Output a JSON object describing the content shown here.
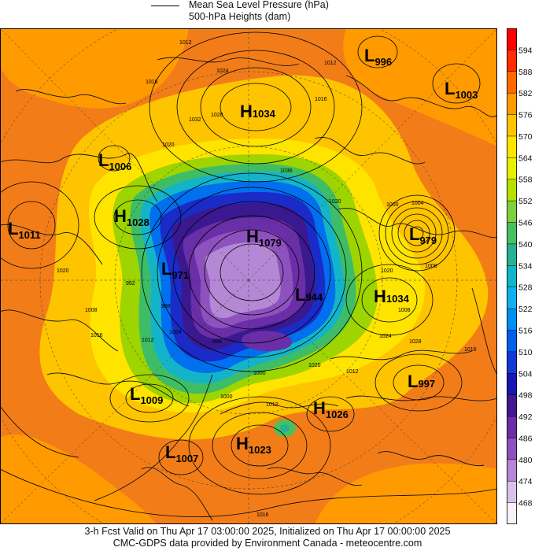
{
  "legend": {
    "line1": "Mean Sea Level Pressure (hPa)",
    "line2": "500-hPa Heights (dam)"
  },
  "pressure_centers": [
    {
      "letter": "L",
      "value": "996"
    },
    {
      "letter": "L",
      "value": "1003"
    },
    {
      "letter": "H",
      "value": "1034"
    },
    {
      "letter": "L",
      "value": "1006"
    },
    {
      "letter": "H",
      "value": "1028"
    },
    {
      "letter": "L",
      "value": "1011"
    },
    {
      "letter": "H",
      "value": "1079"
    },
    {
      "letter": "L",
      "value": "979"
    },
    {
      "letter": "L",
      "value": "971"
    },
    {
      "letter": "L",
      "value": "944"
    },
    {
      "letter": "H",
      "value": "1034"
    },
    {
      "letter": "L",
      "value": "997"
    },
    {
      "letter": "L",
      "value": "1009"
    },
    {
      "letter": "H",
      "value": "1026"
    },
    {
      "letter": "H",
      "value": "1023"
    },
    {
      "letter": "L",
      "value": "1007"
    }
  ],
  "contour_labels": [
    "1012",
    "1024",
    "1016",
    "1028",
    "1020",
    "1032",
    "1016",
    "1012",
    "1020",
    "1036",
    "1004",
    "1008",
    "1000",
    "1020",
    "1020",
    "1024",
    "1028",
    "1016",
    "1012",
    "1020",
    "1012",
    "1004",
    "1000",
    "992",
    "996",
    "988",
    "1000",
    "1008",
    "1008",
    "1016",
    "1012",
    "1016"
  ],
  "colorbar": {
    "ticks": [
      "594",
      "588",
      "582",
      "576",
      "570",
      "564",
      "558",
      "552",
      "546",
      "540",
      "534",
      "528",
      "522",
      "516",
      "510",
      "504",
      "498",
      "492",
      "486",
      "480",
      "474",
      "468"
    ],
    "colors": [
      "#ff0000",
      "#ff2d00",
      "#ff6a00",
      "#ff9a00",
      "#ffc400",
      "#ffe400",
      "#e6f000",
      "#b5e000",
      "#7fd040",
      "#48c060",
      "#28b090",
      "#12b4c8",
      "#12b0ef",
      "#0090f0",
      "#0060ee",
      "#1438d8",
      "#1818b0",
      "#401890",
      "#6a2ea8",
      "#8e52be",
      "#b488d4",
      "#d9c2e8",
      "#f7f2fa"
    ]
  },
  "footer": {
    "line1": "3-h Fcst Valid on Thu Apr 17 03:00:00 2025, Initialized on Thu Apr 17 00:00:00 2025",
    "line2": "CMC-GDPS data provided by Environment Canada - meteocentre.com"
  }
}
